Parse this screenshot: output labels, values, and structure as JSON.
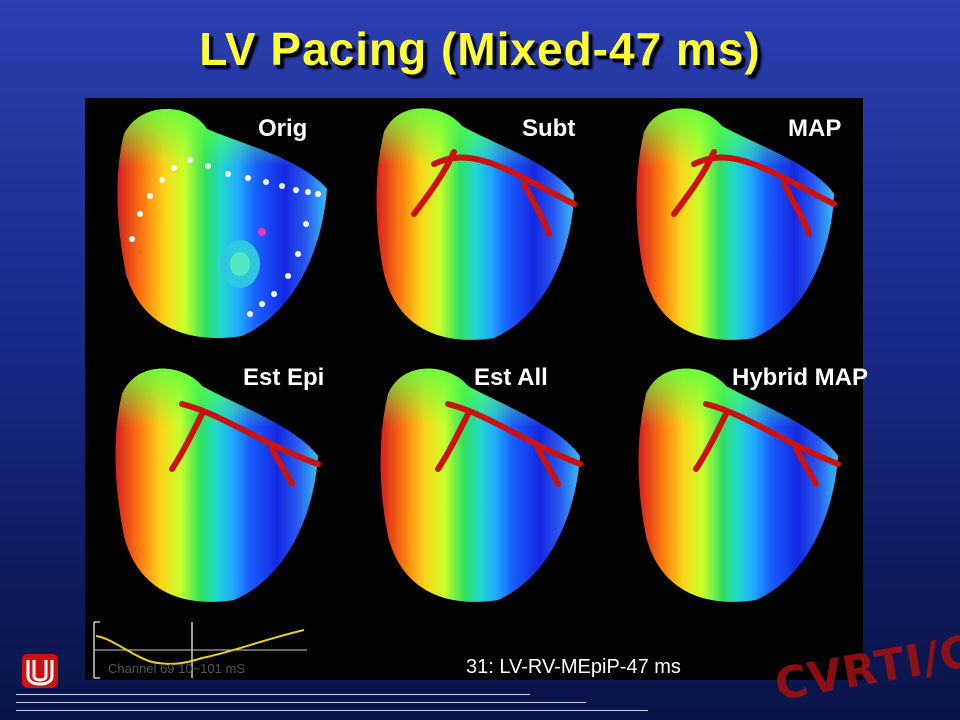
{
  "slide": {
    "title": "LV Pacing (Mixed-47 ms)",
    "labels": {
      "orig": "Orig",
      "subt": "Subt",
      "map": "MAP",
      "est_epi": "Est Epi",
      "est_all": "Est All",
      "hybrid_map": "Hybrid MAP"
    },
    "trace_label": "Channel 69 10~101 mS",
    "caption": "31: LV-RV-MEpiP-47 ms",
    "watermark": "CVRTI/CDSP"
  },
  "colors": {
    "title": "#ffff33",
    "panel_background": "#000000",
    "vessel": "#cc1111",
    "watermark": "#9a1010"
  }
}
